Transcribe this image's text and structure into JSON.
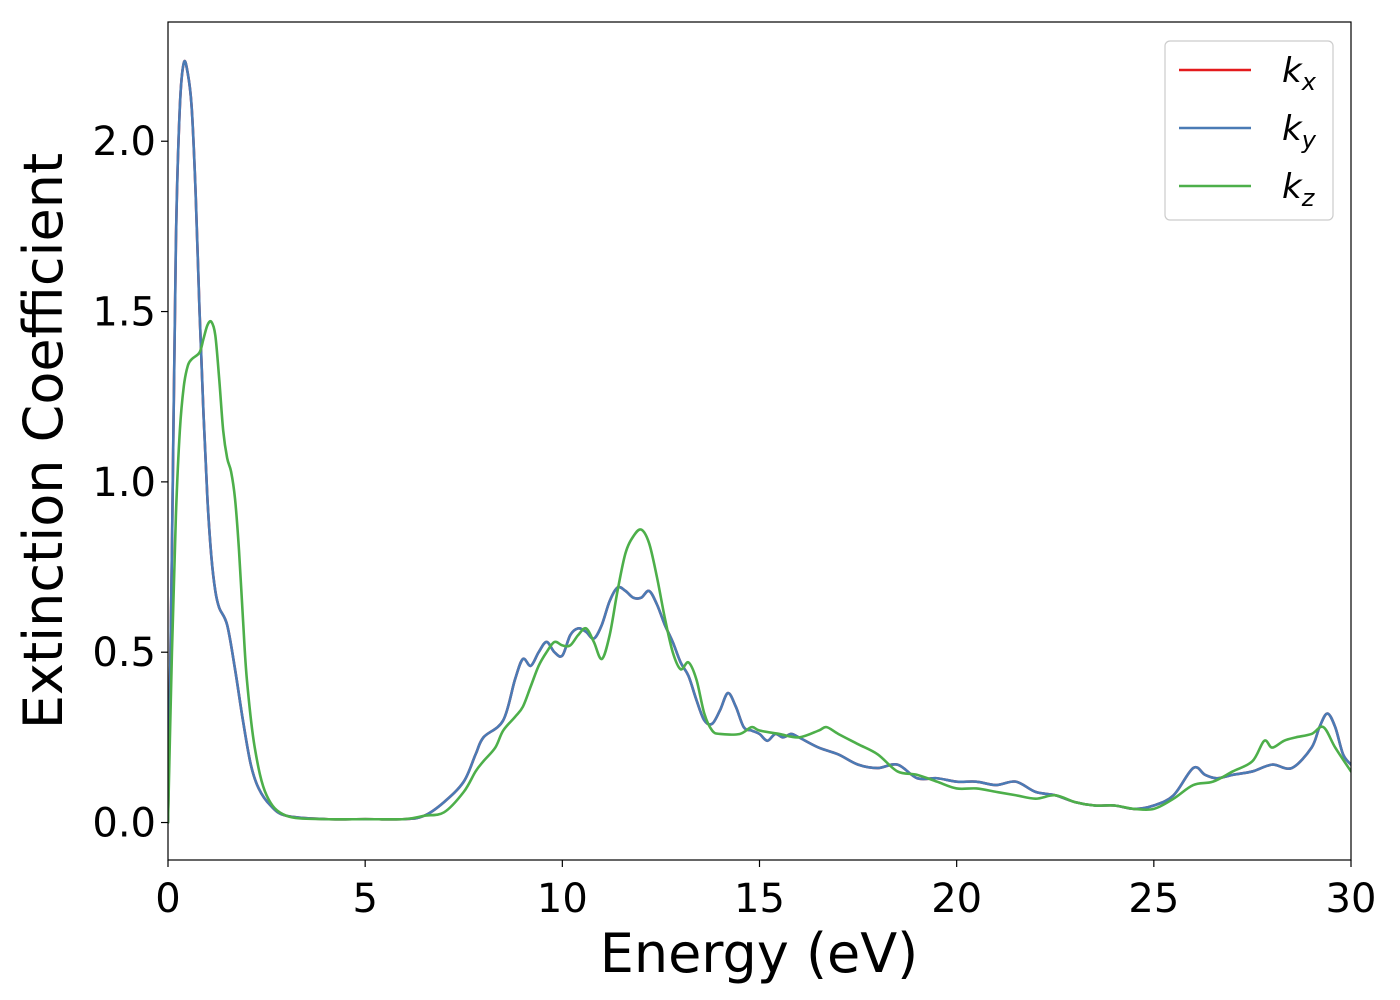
{
  "chart_data": {
    "type": "line",
    "title": "",
    "xlabel": "Energy (eV)",
    "ylabel": "Extinction Coefficient",
    "xlim": [
      0,
      30
    ],
    "ylim": [
      -0.11,
      2.35
    ],
    "xticks": [
      0,
      5,
      10,
      15,
      20,
      25,
      30
    ],
    "xtick_labels": [
      "0",
      "5",
      "10",
      "15",
      "20",
      "25",
      "30"
    ],
    "yticks": [
      0.0,
      0.5,
      1.0,
      1.5,
      2.0
    ],
    "ytick_labels": [
      "0.0",
      "0.5",
      "1.0",
      "1.5",
      "2.0"
    ],
    "grid": false,
    "legend_position": "top-right",
    "series": [
      {
        "name": "k_x",
        "legend_main": "k",
        "legend_sub": "x",
        "color": "#e41a1c",
        "points": [
          [
            0,
            0.0
          ],
          [
            0.1,
            0.8
          ],
          [
            0.2,
            1.7
          ],
          [
            0.3,
            2.1
          ],
          [
            0.4,
            2.23
          ],
          [
            0.5,
            2.2
          ],
          [
            0.6,
            2.1
          ],
          [
            0.7,
            1.85
          ],
          [
            0.8,
            1.5
          ],
          [
            0.9,
            1.2
          ],
          [
            1.0,
            0.95
          ],
          [
            1.1,
            0.78
          ],
          [
            1.2,
            0.68
          ],
          [
            1.3,
            0.63
          ],
          [
            1.5,
            0.58
          ],
          [
            1.7,
            0.45
          ],
          [
            1.9,
            0.3
          ],
          [
            2.1,
            0.17
          ],
          [
            2.3,
            0.1
          ],
          [
            2.6,
            0.05
          ],
          [
            3.0,
            0.02
          ],
          [
            4.0,
            0.01
          ],
          [
            5.0,
            0.01
          ],
          [
            6.0,
            0.01
          ],
          [
            6.5,
            0.02
          ],
          [
            7.0,
            0.06
          ],
          [
            7.5,
            0.12
          ],
          [
            7.8,
            0.2
          ],
          [
            8.0,
            0.25
          ],
          [
            8.5,
            0.3
          ],
          [
            8.8,
            0.42
          ],
          [
            9.0,
            0.48
          ],
          [
            9.2,
            0.46
          ],
          [
            9.4,
            0.5
          ],
          [
            9.6,
            0.53
          ],
          [
            9.8,
            0.5
          ],
          [
            10.0,
            0.49
          ],
          [
            10.2,
            0.55
          ],
          [
            10.4,
            0.57
          ],
          [
            10.6,
            0.56
          ],
          [
            10.8,
            0.54
          ],
          [
            11.0,
            0.58
          ],
          [
            11.2,
            0.65
          ],
          [
            11.4,
            0.69
          ],
          [
            11.6,
            0.68
          ],
          [
            11.8,
            0.66
          ],
          [
            12.0,
            0.66
          ],
          [
            12.2,
            0.68
          ],
          [
            12.4,
            0.64
          ],
          [
            12.6,
            0.58
          ],
          [
            12.8,
            0.53
          ],
          [
            13.0,
            0.47
          ],
          [
            13.2,
            0.43
          ],
          [
            13.4,
            0.36
          ],
          [
            13.6,
            0.3
          ],
          [
            13.8,
            0.29
          ],
          [
            14.0,
            0.33
          ],
          [
            14.2,
            0.38
          ],
          [
            14.4,
            0.34
          ],
          [
            14.6,
            0.28
          ],
          [
            14.8,
            0.27
          ],
          [
            15.0,
            0.26
          ],
          [
            15.2,
            0.24
          ],
          [
            15.4,
            0.26
          ],
          [
            15.6,
            0.25
          ],
          [
            15.8,
            0.26
          ],
          [
            16.0,
            0.25
          ],
          [
            16.5,
            0.22
          ],
          [
            17.0,
            0.2
          ],
          [
            17.5,
            0.17
          ],
          [
            18.0,
            0.16
          ],
          [
            18.5,
            0.17
          ],
          [
            19.0,
            0.13
          ],
          [
            19.5,
            0.13
          ],
          [
            20.0,
            0.12
          ],
          [
            20.5,
            0.12
          ],
          [
            21.0,
            0.11
          ],
          [
            21.5,
            0.12
          ],
          [
            22.0,
            0.09
          ],
          [
            22.5,
            0.08
          ],
          [
            23.0,
            0.06
          ],
          [
            23.5,
            0.05
          ],
          [
            24.0,
            0.05
          ],
          [
            24.5,
            0.04
          ],
          [
            25.0,
            0.05
          ],
          [
            25.5,
            0.08
          ],
          [
            26.0,
            0.16
          ],
          [
            26.3,
            0.14
          ],
          [
            26.6,
            0.13
          ],
          [
            27.0,
            0.14
          ],
          [
            27.5,
            0.15
          ],
          [
            28.0,
            0.17
          ],
          [
            28.5,
            0.16
          ],
          [
            29.0,
            0.22
          ],
          [
            29.2,
            0.28
          ],
          [
            29.4,
            0.32
          ],
          [
            29.6,
            0.28
          ],
          [
            29.8,
            0.2
          ],
          [
            30.0,
            0.17
          ]
        ]
      },
      {
        "name": "k_y",
        "legend_main": "k",
        "legend_sub": "y",
        "color": "#4a7bb5",
        "points": [
          [
            0,
            0.0
          ],
          [
            0.1,
            0.8
          ],
          [
            0.2,
            1.7
          ],
          [
            0.3,
            2.1
          ],
          [
            0.4,
            2.23
          ],
          [
            0.5,
            2.2
          ],
          [
            0.6,
            2.1
          ],
          [
            0.7,
            1.85
          ],
          [
            0.8,
            1.5
          ],
          [
            0.9,
            1.2
          ],
          [
            1.0,
            0.95
          ],
          [
            1.1,
            0.78
          ],
          [
            1.2,
            0.68
          ],
          [
            1.3,
            0.63
          ],
          [
            1.5,
            0.58
          ],
          [
            1.7,
            0.45
          ],
          [
            1.9,
            0.3
          ],
          [
            2.1,
            0.17
          ],
          [
            2.3,
            0.1
          ],
          [
            2.6,
            0.05
          ],
          [
            3.0,
            0.02
          ],
          [
            4.0,
            0.01
          ],
          [
            5.0,
            0.01
          ],
          [
            6.0,
            0.01
          ],
          [
            6.5,
            0.02
          ],
          [
            7.0,
            0.06
          ],
          [
            7.5,
            0.12
          ],
          [
            7.8,
            0.2
          ],
          [
            8.0,
            0.25
          ],
          [
            8.5,
            0.3
          ],
          [
            8.8,
            0.42
          ],
          [
            9.0,
            0.48
          ],
          [
            9.2,
            0.46
          ],
          [
            9.4,
            0.5
          ],
          [
            9.6,
            0.53
          ],
          [
            9.8,
            0.5
          ],
          [
            10.0,
            0.49
          ],
          [
            10.2,
            0.55
          ],
          [
            10.4,
            0.57
          ],
          [
            10.6,
            0.56
          ],
          [
            10.8,
            0.54
          ],
          [
            11.0,
            0.58
          ],
          [
            11.2,
            0.65
          ],
          [
            11.4,
            0.69
          ],
          [
            11.6,
            0.68
          ],
          [
            11.8,
            0.66
          ],
          [
            12.0,
            0.66
          ],
          [
            12.2,
            0.68
          ],
          [
            12.4,
            0.64
          ],
          [
            12.6,
            0.58
          ],
          [
            12.8,
            0.53
          ],
          [
            13.0,
            0.47
          ],
          [
            13.2,
            0.43
          ],
          [
            13.4,
            0.36
          ],
          [
            13.6,
            0.3
          ],
          [
            13.8,
            0.29
          ],
          [
            14.0,
            0.33
          ],
          [
            14.2,
            0.38
          ],
          [
            14.4,
            0.34
          ],
          [
            14.6,
            0.28
          ],
          [
            14.8,
            0.27
          ],
          [
            15.0,
            0.26
          ],
          [
            15.2,
            0.24
          ],
          [
            15.4,
            0.26
          ],
          [
            15.6,
            0.25
          ],
          [
            15.8,
            0.26
          ],
          [
            16.0,
            0.25
          ],
          [
            16.5,
            0.22
          ],
          [
            17.0,
            0.2
          ],
          [
            17.5,
            0.17
          ],
          [
            18.0,
            0.16
          ],
          [
            18.5,
            0.17
          ],
          [
            19.0,
            0.13
          ],
          [
            19.5,
            0.13
          ],
          [
            20.0,
            0.12
          ],
          [
            20.5,
            0.12
          ],
          [
            21.0,
            0.11
          ],
          [
            21.5,
            0.12
          ],
          [
            22.0,
            0.09
          ],
          [
            22.5,
            0.08
          ],
          [
            23.0,
            0.06
          ],
          [
            23.5,
            0.05
          ],
          [
            24.0,
            0.05
          ],
          [
            24.5,
            0.04
          ],
          [
            25.0,
            0.05
          ],
          [
            25.5,
            0.08
          ],
          [
            26.0,
            0.16
          ],
          [
            26.3,
            0.14
          ],
          [
            26.6,
            0.13
          ],
          [
            27.0,
            0.14
          ],
          [
            27.5,
            0.15
          ],
          [
            28.0,
            0.17
          ],
          [
            28.5,
            0.16
          ],
          [
            29.0,
            0.22
          ],
          [
            29.2,
            0.28
          ],
          [
            29.4,
            0.32
          ],
          [
            29.6,
            0.28
          ],
          [
            29.8,
            0.2
          ],
          [
            30.0,
            0.17
          ]
        ]
      },
      {
        "name": "k_z",
        "legend_main": "k",
        "legend_sub": "z",
        "color": "#4daf4a",
        "points": [
          [
            0,
            0.0
          ],
          [
            0.1,
            0.5
          ],
          [
            0.2,
            0.9
          ],
          [
            0.3,
            1.15
          ],
          [
            0.4,
            1.28
          ],
          [
            0.5,
            1.34
          ],
          [
            0.6,
            1.36
          ],
          [
            0.8,
            1.38
          ],
          [
            0.9,
            1.42
          ],
          [
            1.0,
            1.46
          ],
          [
            1.1,
            1.47
          ],
          [
            1.2,
            1.43
          ],
          [
            1.3,
            1.3
          ],
          [
            1.4,
            1.15
          ],
          [
            1.5,
            1.07
          ],
          [
            1.6,
            1.03
          ],
          [
            1.7,
            0.95
          ],
          [
            1.8,
            0.8
          ],
          [
            1.9,
            0.6
          ],
          [
            2.0,
            0.42
          ],
          [
            2.2,
            0.22
          ],
          [
            2.5,
            0.08
          ],
          [
            3.0,
            0.02
          ],
          [
            4.0,
            0.01
          ],
          [
            5.0,
            0.01
          ],
          [
            6.0,
            0.01
          ],
          [
            6.5,
            0.02
          ],
          [
            7.0,
            0.03
          ],
          [
            7.5,
            0.09
          ],
          [
            7.8,
            0.15
          ],
          [
            8.0,
            0.18
          ],
          [
            8.3,
            0.22
          ],
          [
            8.5,
            0.27
          ],
          [
            8.8,
            0.31
          ],
          [
            9.0,
            0.34
          ],
          [
            9.2,
            0.4
          ],
          [
            9.4,
            0.46
          ],
          [
            9.6,
            0.5
          ],
          [
            9.8,
            0.53
          ],
          [
            10.0,
            0.52
          ],
          [
            10.2,
            0.52
          ],
          [
            10.4,
            0.55
          ],
          [
            10.6,
            0.57
          ],
          [
            10.8,
            0.53
          ],
          [
            11.0,
            0.48
          ],
          [
            11.2,
            0.55
          ],
          [
            11.4,
            0.68
          ],
          [
            11.6,
            0.79
          ],
          [
            11.8,
            0.84
          ],
          [
            12.0,
            0.86
          ],
          [
            12.2,
            0.82
          ],
          [
            12.4,
            0.72
          ],
          [
            12.6,
            0.6
          ],
          [
            12.8,
            0.5
          ],
          [
            13.0,
            0.45
          ],
          [
            13.2,
            0.47
          ],
          [
            13.4,
            0.42
          ],
          [
            13.6,
            0.32
          ],
          [
            13.8,
            0.27
          ],
          [
            14.0,
            0.26
          ],
          [
            14.5,
            0.26
          ],
          [
            14.8,
            0.28
          ],
          [
            15.0,
            0.27
          ],
          [
            15.5,
            0.26
          ],
          [
            16.0,
            0.25
          ],
          [
            16.5,
            0.27
          ],
          [
            16.7,
            0.28
          ],
          [
            17.0,
            0.26
          ],
          [
            17.5,
            0.23
          ],
          [
            18.0,
            0.2
          ],
          [
            18.5,
            0.15
          ],
          [
            19.0,
            0.14
          ],
          [
            19.5,
            0.12
          ],
          [
            20.0,
            0.1
          ],
          [
            20.5,
            0.1
          ],
          [
            21.0,
            0.09
          ],
          [
            21.5,
            0.08
          ],
          [
            22.0,
            0.07
          ],
          [
            22.5,
            0.08
          ],
          [
            23.0,
            0.06
          ],
          [
            23.5,
            0.05
          ],
          [
            24.0,
            0.05
          ],
          [
            24.5,
            0.04
          ],
          [
            25.0,
            0.04
          ],
          [
            25.5,
            0.07
          ],
          [
            26.0,
            0.11
          ],
          [
            26.5,
            0.12
          ],
          [
            27.0,
            0.15
          ],
          [
            27.5,
            0.18
          ],
          [
            27.8,
            0.24
          ],
          [
            28.0,
            0.22
          ],
          [
            28.3,
            0.24
          ],
          [
            28.6,
            0.25
          ],
          [
            29.0,
            0.26
          ],
          [
            29.3,
            0.28
          ],
          [
            29.6,
            0.22
          ],
          [
            30.0,
            0.15
          ]
        ]
      }
    ]
  }
}
